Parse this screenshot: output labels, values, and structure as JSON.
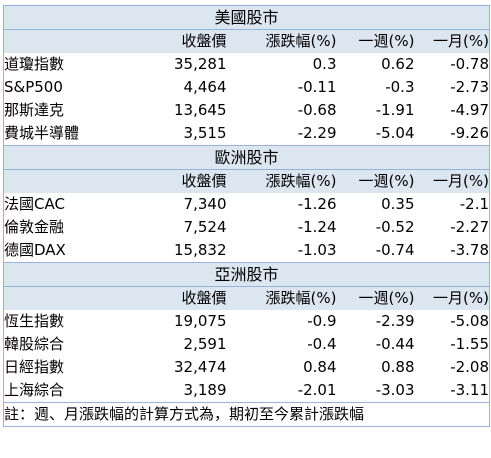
{
  "columns": [
    "收盤價",
    "漲跌幅(%)",
    "一週(%)",
    "一月(%)"
  ],
  "sections": [
    {
      "title": "美國股市",
      "rows": [
        {
          "name": "道瓊指數",
          "close": "35,281",
          "change": "0.3",
          "week": "0.62",
          "month": "-0.78"
        },
        {
          "name": "S&P500",
          "close": "4,464",
          "change": "-0.11",
          "week": "-0.3",
          "month": "-2.73"
        },
        {
          "name": "那斯達克",
          "close": "13,645",
          "change": "-0.68",
          "week": "-1.91",
          "month": "-4.97"
        },
        {
          "name": "費城半導體",
          "close": "3,515",
          "change": "-2.29",
          "week": "-5.04",
          "month": "-9.26"
        }
      ]
    },
    {
      "title": "歐洲股市",
      "rows": [
        {
          "name": "法國CAC",
          "close": "7,340",
          "change": "-1.26",
          "week": "0.35",
          "month": "-2.1"
        },
        {
          "name": "倫敦金融",
          "close": "7,524",
          "change": "-1.24",
          "week": "-0.52",
          "month": "-2.27"
        },
        {
          "name": "德國DAX",
          "close": "15,832",
          "change": "-1.03",
          "week": "-0.74",
          "month": "-3.78"
        }
      ]
    },
    {
      "title": "亞洲股市",
      "rows": [
        {
          "name": "恆生指數",
          "close": "19,075",
          "change": "-0.9",
          "week": "-2.39",
          "month": "-5.08"
        },
        {
          "name": "韓股綜合",
          "close": "2,591",
          "change": "-0.4",
          "week": "-0.44",
          "month": "-1.55"
        },
        {
          "name": "日經指數",
          "close": "32,474",
          "change": "0.84",
          "week": "0.88",
          "month": "-2.08"
        },
        {
          "name": "上海綜合",
          "close": "3,189",
          "change": "-2.01",
          "week": "-3.03",
          "month": "-3.11"
        }
      ]
    }
  ],
  "note": "註：週、月漲跌幅的計算方式為，期初至今累計漲跌幅",
  "colors": {
    "header_fill": "#dce6f1",
    "border": "#9ab4d6"
  }
}
